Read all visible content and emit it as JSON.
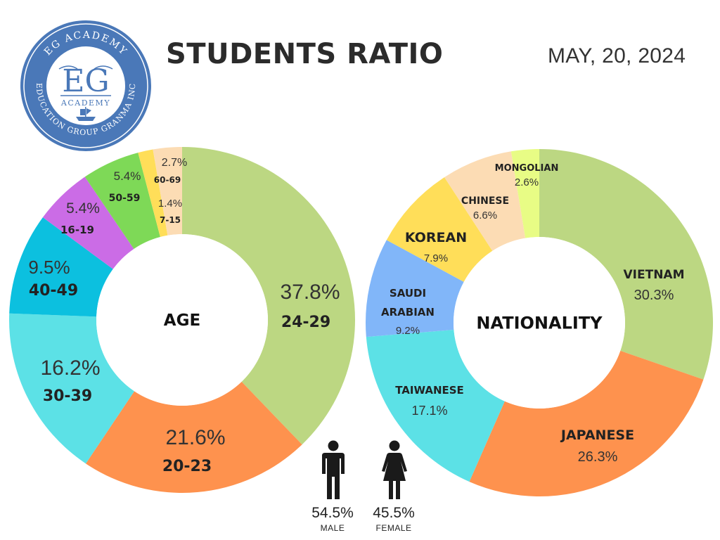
{
  "header": {
    "title": "STUDENTS RATIO",
    "date": "MAY, 20, 2024"
  },
  "logo": {
    "top_text": "EG ACADEMY",
    "main": "EG",
    "sub": "ACADEMY",
    "bottom_text": "EDUCATION GROUP GRANMA INC",
    "color": "#4a78b8"
  },
  "chart_data": [
    {
      "type": "pie",
      "center_label": "AGE",
      "slices": [
        {
          "label": "24-29",
          "value": 37.8,
          "value_label": "37.8%",
          "color": "#bcd782"
        },
        {
          "label": "20-23",
          "value": 21.6,
          "value_label": "21.6%",
          "color": "#fe924e"
        },
        {
          "label": "30-39",
          "value": 16.2,
          "value_label": "16.2%",
          "color": "#5ce1e6"
        },
        {
          "label": "40-49",
          "value": 9.5,
          "value_label": "9.5%",
          "color": "#0cc0df"
        },
        {
          "label": "16-19",
          "value": 5.4,
          "value_label": "5.4%",
          "color": "#cb6ce6"
        },
        {
          "label": "50-59",
          "value": 5.4,
          "value_label": "5.4%",
          "color": "#7ed957"
        },
        {
          "label": "7-15",
          "value": 1.4,
          "value_label": "1.4%",
          "color": "#ffde59"
        },
        {
          "label": "60-69",
          "value": 2.7,
          "value_label": "2.7%",
          "color": "#fcdcb4"
        }
      ]
    },
    {
      "type": "pie",
      "center_label": "NATIONALITY",
      "slices": [
        {
          "label": "VIETNAM",
          "value": 30.3,
          "value_label": "30.3%",
          "color": "#bcd782"
        },
        {
          "label": "JAPANESE",
          "value": 26.3,
          "value_label": "26.3%",
          "color": "#fe924e"
        },
        {
          "label": "TAIWANESE",
          "value": 17.1,
          "value_label": "17.1%",
          "color": "#5ce1e6"
        },
        {
          "label": "SAUDI ARABIAN",
          "value": 9.2,
          "value_label": "9.2%",
          "color": "#81b6f9"
        },
        {
          "label": "KOREAN",
          "value": 7.9,
          "value_label": "7.9%",
          "color": "#ffde59"
        },
        {
          "label": "CHINESE",
          "value": 6.6,
          "value_label": "6.6%",
          "color": "#fcdcb4"
        },
        {
          "label": "MONGOLIAN",
          "value": 2.6,
          "value_label": "2.6%",
          "color": "#e8fc85"
        }
      ]
    }
  ],
  "gender": {
    "male": {
      "value": 54.5,
      "value_label": "54.5%",
      "label": "MALE",
      "icon": "male-person-icon"
    },
    "female": {
      "value": 45.5,
      "value_label": "45.5%",
      "label": "FEMALE",
      "icon": "female-person-icon"
    },
    "icon_color": "#1a1a1a"
  }
}
